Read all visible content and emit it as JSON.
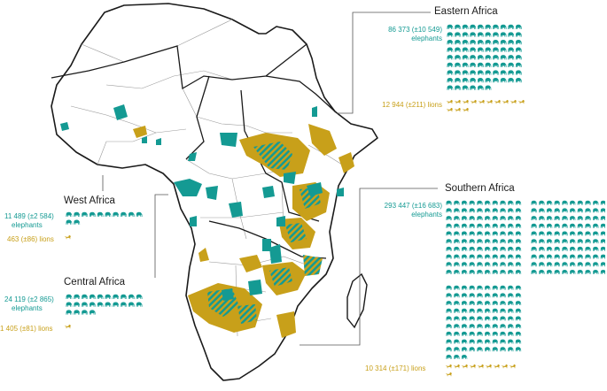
{
  "colors": {
    "elephant": "#149a93",
    "lion": "#c8a01a",
    "land": "#ffffff",
    "border": "#1a1a1a",
    "country_line": "#9a9a9a",
    "leader_line": "#555555"
  },
  "legend_icons": {
    "elephant": "elephant-icon",
    "lion": "lion-icon"
  },
  "regions": [
    {
      "id": "west",
      "name": "West Africa",
      "elephants_line1": "11 489 (±2 584)",
      "elephants_line2": "elephants",
      "lions_text": "463 (±86) lions",
      "elephant_icon_count": 12,
      "lion_icon_count": 1
    },
    {
      "id": "central",
      "name": "Central Africa",
      "elephants_line1": "24 119 (±2 865)",
      "elephants_line2": "elephants",
      "lions_text": "1 405 (±81) lions",
      "elephant_icon_count": 24,
      "lion_icon_count": 1
    },
    {
      "id": "eastern",
      "name": "Eastern Africa",
      "elephants_line1": "86 373 (±10 549)",
      "elephants_line2": "elephants",
      "lions_text": "12 944 (±211) lions",
      "elephant_icon_count": 86,
      "lion_icon_count": 13
    },
    {
      "id": "southern",
      "name": "Southern Africa",
      "elephants_line1": "293 447 (±16 683)",
      "elephants_line2": "elephants",
      "lions_text": "10 314 (±171) lions",
      "elephant_icon_count": 293,
      "lion_icon_count": 10
    }
  ]
}
